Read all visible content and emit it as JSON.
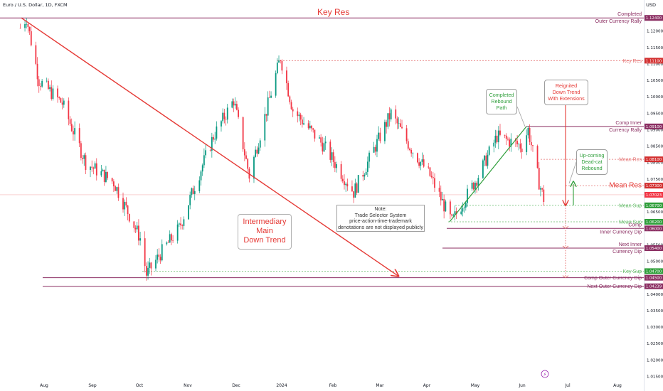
{
  "header": {
    "symbol": "Euro / U.S. Dollar, 1D, FXCM",
    "currency": "USD"
  },
  "colors": {
    "up": "#089981",
    "down": "#f23645",
    "red_line": "#e53935",
    "green_line": "#2e9e3a",
    "purple": "#8b2e62",
    "axis_text": "#131722"
  },
  "chart_data": {
    "type": "candlestick",
    "ylim": [
      1.0125,
      1.1275
    ],
    "y_ticks": [
      "1.12000",
      "1.11500",
      "1.11000",
      "1.10500",
      "1.10000",
      "1.09500",
      "1.09000",
      "1.08500",
      "1.08000",
      "1.07500",
      "1.07000",
      "1.06500",
      "1.06000",
      "1.05500",
      "1.05000",
      "1.04500",
      "1.04000",
      "1.03500",
      "1.03000",
      "1.02500",
      "1.02000",
      "1.01500"
    ],
    "x_ticks": [
      "Aug",
      "Sep",
      "Oct",
      "Nov",
      "Dec",
      "2024",
      "Feb",
      "Mar",
      "Apr",
      "May",
      "Jun",
      "Jul",
      "Aug"
    ],
    "trend_path_close": [
      [
        "2023-07-14",
        1.121
      ],
      [
        "2023-07-18",
        1.124
      ],
      [
        "2023-07-26",
        1.105
      ],
      [
        "2023-08-10",
        1.098
      ],
      [
        "2023-08-25",
        1.08
      ],
      [
        "2023-09-12",
        1.074
      ],
      [
        "2023-09-29",
        1.057
      ],
      [
        "2023-10-03",
        1.046
      ],
      [
        "2023-10-13",
        1.053
      ],
      [
        "2023-10-24",
        1.06
      ],
      [
        "2023-11-03",
        1.073
      ],
      [
        "2023-11-15",
        1.088
      ],
      [
        "2023-11-28",
        1.099
      ],
      [
        "2023-12-08",
        1.076
      ],
      [
        "2023-12-28",
        1.112
      ],
      [
        "2024-01-05",
        1.096
      ],
      [
        "2024-01-25",
        1.085
      ],
      [
        "2024-02-13",
        1.071
      ],
      [
        "2024-03-08",
        1.095
      ],
      [
        "2024-03-20",
        1.085
      ],
      [
        "2024-04-02",
        1.076
      ],
      [
        "2024-04-16",
        1.062
      ],
      [
        "2024-05-03",
        1.076
      ],
      [
        "2024-05-15",
        1.088
      ],
      [
        "2024-05-31",
        1.085
      ],
      [
        "2024-06-04",
        1.09
      ],
      [
        "2024-06-11",
        1.074
      ],
      [
        "2024-06-14",
        1.069
      ]
    ],
    "levels": [
      {
        "label": "Completed",
        "label2": "Outer Currency Rally",
        "badge": "1.12400",
        "value": 1.124,
        "style": "purple-solid"
      },
      {
        "label": "Key Res",
        "label2": "",
        "badge": "1.11100",
        "value": 1.111,
        "style": "red-dashed"
      },
      {
        "label": "Comp Inner",
        "label2": "Currency Rally",
        "badge": "1.09100",
        "value": 1.091,
        "style": "purple-solid"
      },
      {
        "label": "Mean Res",
        "label2": "",
        "badge": "1.08100",
        "value": 1.081,
        "style": "red-dashed"
      },
      {
        "label": "Mean Res",
        "label2": "",
        "badge": "1.07300",
        "value": 1.073,
        "style": "red-dashed"
      },
      {
        "label": "",
        "label2": "",
        "badge": "1.07023",
        "value": 1.07023,
        "style": "current"
      },
      {
        "label": "Mean Sup",
        "label2": "",
        "badge": "1.06700",
        "value": 1.067,
        "style": "green-dashed"
      },
      {
        "label": "Mean Sup",
        "label2": "",
        "badge": "1.06200",
        "value": 1.062,
        "style": "green-dashed"
      },
      {
        "label": "Comp",
        "label2": "Inner Currency Dip",
        "badge": "1.06000",
        "value": 1.06,
        "style": "purple-solid"
      },
      {
        "label": "Next Inner",
        "label2": "Currency Dip",
        "badge": "1.05400",
        "value": 1.054,
        "style": "purple-solid"
      },
      {
        "label": "Key Sup",
        "label2": "",
        "badge": "1.04700",
        "value": 1.047,
        "style": "green-dashed"
      },
      {
        "label": "Comp Outer Currency Dip",
        "label2": "",
        "badge": "1.04500",
        "value": 1.045,
        "style": "purple-solid"
      },
      {
        "label": "Next Outer Currency Dip",
        "label2": "",
        "badge": "1.04239",
        "value": 1.04239,
        "style": "purple-solid"
      }
    ],
    "annotations": {
      "key_res_top": "Key Res",
      "main_trend": [
        "Intermediary",
        "Main",
        "Down Trend"
      ],
      "rebound": [
        "Completed",
        "Rebound",
        "Path"
      ],
      "reignited": [
        "Reignited",
        "Down Trend",
        "With Extensions"
      ],
      "deadcat": [
        "Up-coming",
        "Dead-cat",
        "Rebound"
      ],
      "note": [
        "Note:",
        "Trade Selector System",
        "price-action-time-trademark",
        "denotations are not displayed publicly"
      ]
    }
  }
}
